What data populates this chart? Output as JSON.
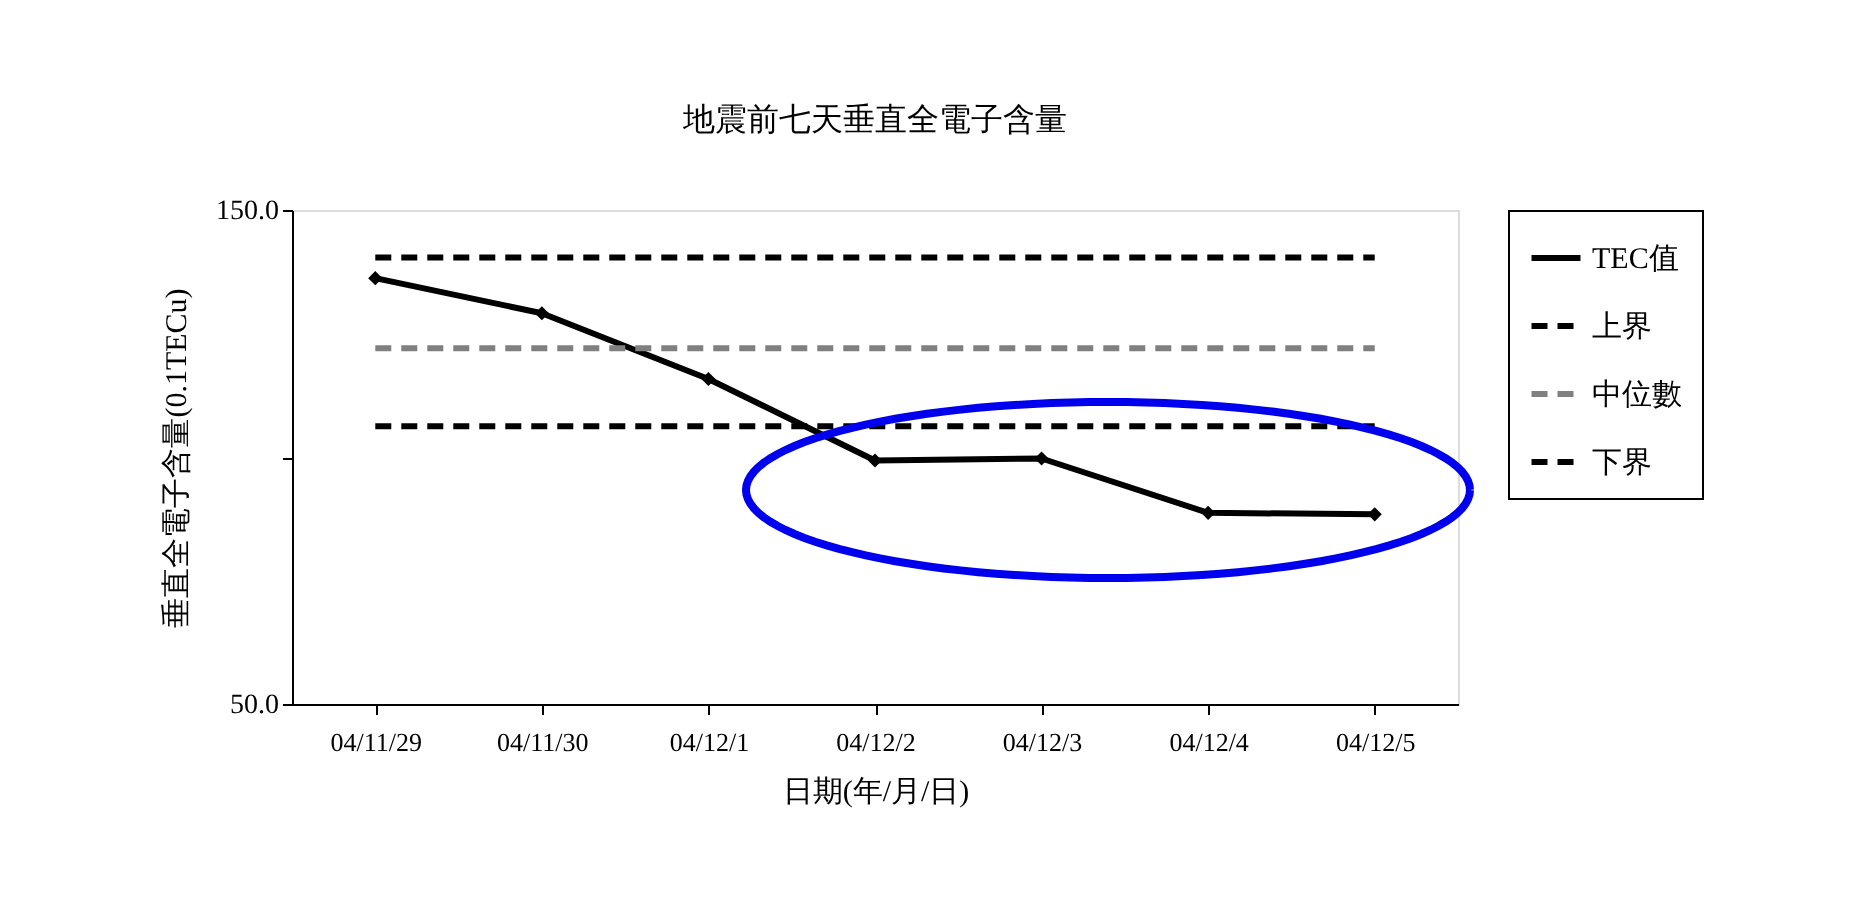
{
  "chart_data": {
    "type": "line",
    "title": "地震前七天垂直全電子含量",
    "xlabel": "日期(年/月/日)",
    "ylabel": "垂直全電子含量(0.1TECu)",
    "categories": [
      "04/11/29",
      "04/11/30",
      "04/12/1",
      "04/12/2",
      "04/12/3",
      "04/12/4",
      "04/12/5"
    ],
    "series": [
      {
        "name": "TEC值",
        "color": "#000000",
        "marker": "diamond",
        "line_style": "solid",
        "values": [
          136.2,
          129.1,
          115.8,
          99.3,
          99.7,
          88.7,
          88.4
        ]
      },
      {
        "name": "上界",
        "color": "#000000",
        "marker": "none",
        "line_style": "dashed",
        "values": [
          140.4,
          140.4,
          140.4,
          140.4,
          140.4,
          140.4,
          140.4
        ]
      },
      {
        "name": "中位數",
        "color": "#808080",
        "marker": "none",
        "line_style": "dashed",
        "values": [
          122.0,
          122.0,
          122.0,
          122.0,
          122.0,
          122.0,
          122.0
        ]
      },
      {
        "name": "下界",
        "color": "#000000",
        "marker": "none",
        "line_style": "dashed",
        "values": [
          106.2,
          106.2,
          106.2,
          106.2,
          106.2,
          106.2,
          106.2
        ]
      }
    ],
    "ylim": [
      50,
      150
    ],
    "yticks": [
      {
        "value": 50,
        "label": "50.0"
      },
      {
        "value": 100,
        "label": null
      },
      {
        "value": 150,
        "label": "150.0"
      }
    ],
    "grid": false,
    "legend": "right"
  }
}
